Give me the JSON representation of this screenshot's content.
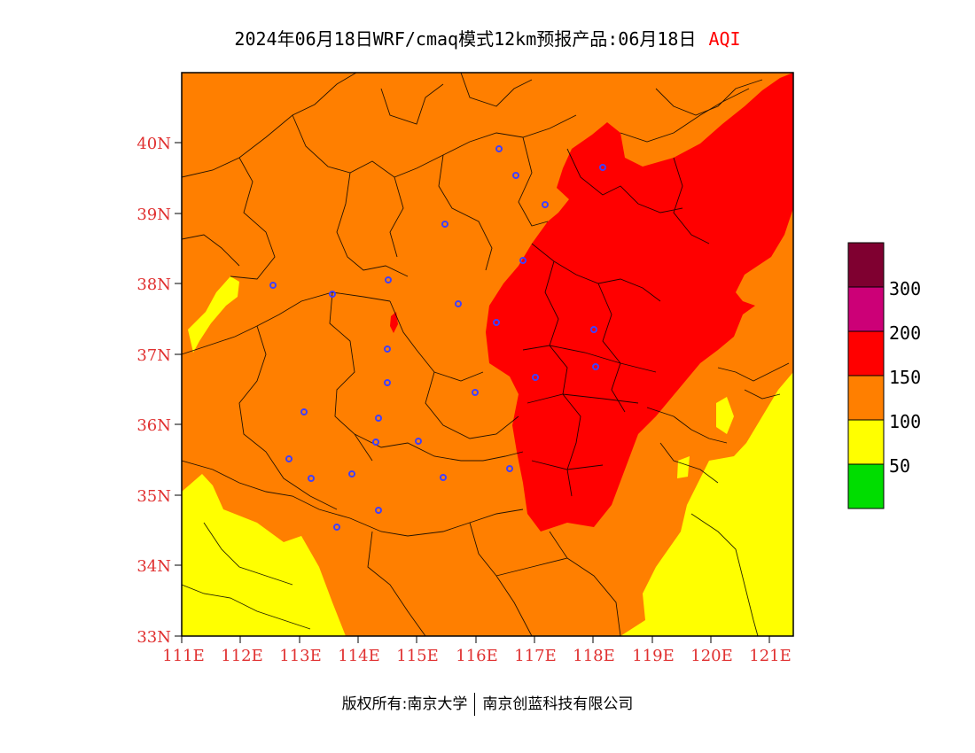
{
  "header": {
    "product_title": "2024年06月18日WRF/cmaq模式12km预报产品:06月18日",
    "variable": "AQI"
  },
  "axes": {
    "lat_labels": [
      "33N",
      "34N",
      "35N",
      "36N",
      "37N",
      "38N",
      "39N",
      "40N"
    ],
    "lon_labels": [
      "111E",
      "112E",
      "113E",
      "114E",
      "115E",
      "116E",
      "117E",
      "118E",
      "119E",
      "120E",
      "121E"
    ],
    "label_color": "#e03030",
    "lon_range": [
      111,
      121.4
    ],
    "lat_range": [
      33,
      41
    ]
  },
  "legend": {
    "colors": [
      "#7f0030",
      "#cc0077",
      "#ff0000",
      "#ff7f00",
      "#ffff00",
      "#00dd00"
    ],
    "labels": [
      "300",
      "200",
      "150",
      "100",
      "50"
    ]
  },
  "map_colors": {
    "good": "#00dd00",
    "moderate": "#ffff00",
    "light": "#ff7f00",
    "medium": "#ff0000"
  },
  "footer": {
    "left": "版权所有:南京大学",
    "right": "南京创蓝科技有限公司"
  }
}
